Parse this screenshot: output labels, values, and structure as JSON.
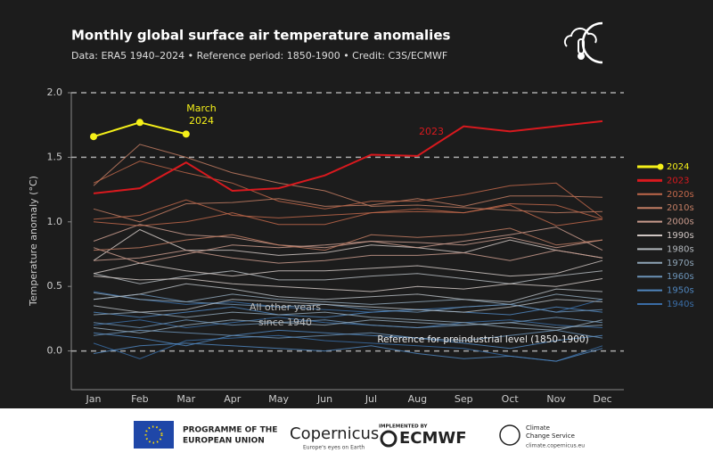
{
  "chart_data": {
    "type": "line",
    "title": "Monthly global surface air temperature anomalies",
    "subtitle": "Data: ERA5 1940–2024 • Reference period: 1850-1900 • Credit: C3S/ECMWF",
    "y_label": "Temperature anomaly (°C)",
    "categories": [
      "Jan",
      "Feb",
      "Mar",
      "Apr",
      "May",
      "Jun",
      "Jul",
      "Aug",
      "Sep",
      "Oct",
      "Nov",
      "Dec"
    ],
    "ylim": [
      -0.3,
      2.0
    ],
    "yticks": [
      {
        "value": 0,
        "label": "0.0"
      },
      0.5,
      {
        "value": 1,
        "label": "1.0"
      },
      1.5,
      {
        "value": 2,
        "label": "2.0"
      }
    ],
    "reference_lines": [
      0,
      1.5,
      2
    ],
    "series": [
      {
        "name": "2024",
        "color": "#f5f019",
        "values": [
          1.66,
          1.77,
          1.68,
          null,
          null,
          null,
          null,
          null,
          null,
          null,
          null,
          null
        ]
      },
      {
        "name": "2023",
        "color": "#d8191e",
        "values": [
          1.22,
          1.26,
          1.46,
          1.24,
          1.26,
          1.36,
          1.52,
          1.51,
          1.74,
          1.7,
          1.74,
          1.78
        ]
      }
    ],
    "decades": [
      {
        "name": "2020s",
        "color": "#c0674a",
        "lines": [
          [
            1.3,
            1.47,
            1.38,
            1.3,
            1.16,
            1.1,
            1.16,
            1.16,
            1.21,
            1.28,
            1.3,
            1.03
          ],
          [
            1.0,
            0.97,
            1.0,
            1.07,
            0.98,
            0.98,
            1.07,
            1.08,
            1.07,
            1.14,
            1.13,
            1.02
          ],
          [
            1.02,
            1.05,
            1.17,
            1.05,
            1.03,
            1.05,
            1.07,
            1.1,
            1.07,
            1.13,
            0.97,
            1.02
          ]
        ]
      },
      {
        "name": "2010s",
        "color": "#c27d63",
        "lines": [
          [
            1.28,
            1.6,
            1.5,
            1.38,
            1.3,
            1.24,
            1.12,
            1.13,
            1.11,
            1.09,
            1.07,
            1.08
          ],
          [
            1.1,
            1.0,
            1.14,
            1.15,
            1.18,
            1.12,
            1.13,
            1.18,
            1.12,
            1.2,
            1.2,
            1.19
          ],
          [
            0.78,
            0.8,
            0.86,
            0.9,
            0.82,
            0.78,
            0.9,
            0.88,
            0.9,
            0.95,
            0.82,
            0.86
          ]
        ]
      },
      {
        "name": "2000s",
        "color": "#c89a8c",
        "lines": [
          [
            0.85,
            0.98,
            0.9,
            0.88,
            0.82,
            0.8,
            0.85,
            0.8,
            0.85,
            0.9,
            0.96,
            0.78
          ],
          [
            0.8,
            0.68,
            0.75,
            0.82,
            0.8,
            0.82,
            0.85,
            0.84,
            0.82,
            0.88,
            0.8,
            0.86
          ],
          [
            0.7,
            0.72,
            0.78,
            0.72,
            0.68,
            0.7,
            0.74,
            0.74,
            0.76,
            0.7,
            0.78,
            0.72
          ]
        ]
      },
      {
        "name": "1990s",
        "color": "#cfc5c2",
        "lines": [
          [
            0.7,
            0.94,
            0.78,
            0.78,
            0.74,
            0.76,
            0.82,
            0.8,
            0.76,
            0.86,
            0.78,
            0.72
          ],
          [
            0.6,
            0.68,
            0.62,
            0.58,
            0.62,
            0.62,
            0.64,
            0.66,
            0.62,
            0.58,
            0.6,
            0.7
          ],
          [
            0.58,
            0.55,
            0.56,
            0.52,
            0.5,
            0.48,
            0.46,
            0.5,
            0.48,
            0.52,
            0.5,
            0.56
          ]
        ]
      },
      {
        "name": "1980s",
        "color": "#b3b8bd",
        "lines": [
          [
            0.6,
            0.52,
            0.58,
            0.62,
            0.55,
            0.55,
            0.58,
            0.6,
            0.56,
            0.52,
            0.58,
            0.62
          ],
          [
            0.4,
            0.44,
            0.52,
            0.48,
            0.42,
            0.4,
            0.42,
            0.44,
            0.4,
            0.38,
            0.48,
            0.46
          ],
          [
            0.35,
            0.3,
            0.32,
            0.4,
            0.38,
            0.36,
            0.34,
            0.32,
            0.3,
            0.34,
            0.4,
            0.38
          ]
        ]
      },
      {
        "name": "1970s",
        "color": "#8ea4b6",
        "lines": [
          [
            0.45,
            0.4,
            0.38,
            0.44,
            0.4,
            0.38,
            0.36,
            0.38,
            0.4,
            0.36,
            0.44,
            0.4
          ],
          [
            0.28,
            0.3,
            0.26,
            0.3,
            0.28,
            0.3,
            0.26,
            0.24,
            0.22,
            0.18,
            0.16,
            0.24
          ],
          [
            0.18,
            0.14,
            0.2,
            0.24,
            0.22,
            0.2,
            0.24,
            0.22,
            0.2,
            0.22,
            0.18,
            0.2
          ]
        ]
      },
      {
        "name": "1960s",
        "color": "#6b92b6",
        "lines": [
          [
            0.4,
            0.44,
            0.38,
            0.36,
            0.34,
            0.36,
            0.32,
            0.3,
            0.34,
            0.36,
            0.3,
            0.32
          ],
          [
            0.22,
            0.18,
            0.24,
            0.2,
            0.22,
            0.24,
            0.2,
            0.18,
            0.2,
            0.22,
            0.26,
            0.22
          ],
          [
            0.12,
            0.16,
            0.14,
            0.12,
            0.1,
            0.12,
            0.14,
            0.1,
            0.08,
            0.12,
            0.16,
            0.1
          ]
        ]
      },
      {
        "name": "1950s",
        "color": "#4f85bd",
        "lines": [
          [
            0.3,
            0.26,
            0.3,
            0.34,
            0.28,
            0.26,
            0.3,
            0.32,
            0.3,
            0.28,
            0.34,
            0.3
          ],
          [
            0.14,
            0.1,
            0.04,
            0.12,
            0.16,
            0.14,
            0.12,
            0.1,
            0.06,
            0.02,
            0.08,
            0.12
          ],
          [
            -0.02,
            0.04,
            0.06,
            0.04,
            0.02,
            0.0,
            0.04,
            -0.02,
            -0.06,
            -0.04,
            -0.08,
            0.02
          ]
        ]
      },
      {
        "name": "1940s",
        "color": "#3a6da6",
        "lines": [
          [
            0.46,
            0.4,
            0.36,
            0.38,
            0.34,
            0.32,
            0.3,
            0.32,
            0.34,
            0.36,
            0.3,
            0.4
          ],
          [
            0.2,
            0.24,
            0.18,
            0.22,
            0.26,
            0.22,
            0.2,
            0.18,
            0.22,
            0.24,
            0.2,
            0.18
          ],
          [
            0.06,
            -0.06,
            0.08,
            0.1,
            0.12,
            0.08,
            0.06,
            0.04,
            0.02,
            -0.04,
            -0.08,
            0.04
          ]
        ]
      }
    ],
    "annotation_2024": [
      "March",
      "2024"
    ],
    "annotation_2023": "2023",
    "annotation_other": [
      "All other years",
      "since 1940"
    ],
    "annotation_reference": "Reference for preindustrial level (1850-1900)"
  },
  "footer": {
    "eu": [
      "PROGRAMME OF THE",
      "EUROPEAN UNION"
    ],
    "copernicus": "Copernicus",
    "copernicus_tagline": "Europe's eyes on Earth",
    "implemented_by": "IMPLEMENTED BY",
    "ecmwf": "ECMWF",
    "c3s": [
      "Climate",
      "Change Service"
    ],
    "c3s_url": "climate.copernicus.eu"
  }
}
